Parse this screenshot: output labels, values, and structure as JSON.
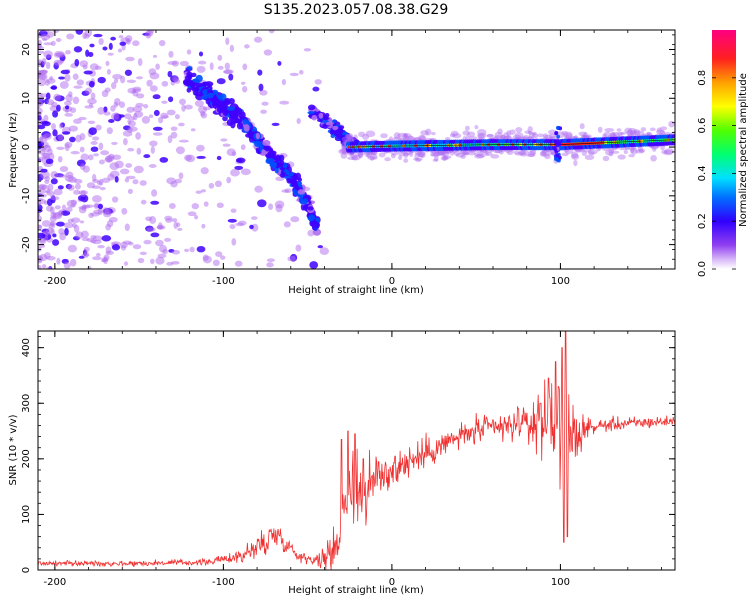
{
  "figure": {
    "title": "S135.2023.057.08.38.G29"
  },
  "chart_data": [
    {
      "type": "heatmap",
      "name": "spectrogram",
      "xlabel": "Height of straight line (km)",
      "ylabel": "Frequency (Hz)",
      "xlim": [
        -210,
        168
      ],
      "ylim": [
        -25,
        24
      ],
      "xticks": [
        -200,
        -100,
        0,
        100
      ],
      "yticks": [
        -20,
        -10,
        0,
        10,
        20
      ],
      "grid": false,
      "colorbar": {
        "label": "Normalized spectral amplitude",
        "range": [
          0,
          1
        ],
        "ticks": [
          0.0,
          0.2,
          0.4,
          0.6,
          0.8
        ],
        "colormap": [
          "#ffffff",
          "#b06cf0",
          "#4000ff",
          "#0050ff",
          "#00c8ff",
          "#00ff80",
          "#40ff00",
          "#ffff00",
          "#ff9000",
          "#ff2020",
          "#ff0090"
        ]
      },
      "features": {
        "scatter_region_x": [
          -210,
          -60
        ],
        "diagonal_trace": [
          [
            -120,
            14
          ],
          [
            -100,
            8
          ],
          [
            -90,
            6
          ],
          [
            -80,
            2
          ],
          [
            -70,
            -3
          ],
          [
            -60,
            -6
          ],
          [
            -50,
            -12
          ],
          [
            -45,
            -16
          ]
        ],
        "second_trace": [
          [
            -45,
            7
          ],
          [
            -35,
            4
          ],
          [
            -25,
            1
          ],
          [
            -20,
            0
          ]
        ],
        "tone_line": [
          [
            -25,
            0
          ],
          [
            0,
            0.2
          ],
          [
            60,
            0.5
          ],
          [
            100,
            0.5
          ],
          [
            168,
            1.5
          ]
        ]
      }
    },
    {
      "type": "line",
      "name": "snr",
      "xlabel": "Height of straight line (km)",
      "ylabel": "SNR (10 * v/v)",
      "xlim": [
        -210,
        168
      ],
      "ylim": [
        0,
        430
      ],
      "xticks": [
        -200,
        -100,
        0,
        100
      ],
      "yticks": [
        0,
        100,
        200,
        300,
        400
      ],
      "grid": false,
      "series": [
        {
          "color": "#f03030",
          "envelope": [
            [
              -210,
              12
            ],
            [
              -150,
              12
            ],
            [
              -110,
              14
            ],
            [
              -90,
              25
            ],
            [
              -80,
              40
            ],
            [
              -72,
              60
            ],
            [
              -68,
              65
            ],
            [
              -62,
              45
            ],
            [
              -55,
              25
            ],
            [
              -45,
              18
            ],
            [
              -38,
              20
            ],
            [
              -32,
              60
            ],
            [
              -28,
              120
            ],
            [
              -24,
              150
            ],
            [
              -20,
              150
            ],
            [
              -15,
              140
            ],
            [
              -10,
              160
            ],
            [
              0,
              180
            ],
            [
              10,
              195
            ],
            [
              20,
              210
            ],
            [
              30,
              225
            ],
            [
              40,
              240
            ],
            [
              50,
              250
            ],
            [
              60,
              255
            ],
            [
              70,
              258
            ],
            [
              80,
              262
            ],
            [
              90,
              265
            ],
            [
              97,
              270
            ],
            [
              100,
              260
            ],
            [
              104,
              250
            ],
            [
              108,
              240
            ],
            [
              115,
              255
            ],
            [
              130,
              262
            ],
            [
              150,
              265
            ],
            [
              168,
              268
            ]
          ],
          "noise": [
            [
              -210,
              4
            ],
            [
              -100,
              5
            ],
            [
              -75,
              25
            ],
            [
              -60,
              12
            ],
            [
              -45,
              6
            ],
            [
              -32,
              50
            ],
            [
              -20,
              70
            ],
            [
              -10,
              40
            ],
            [
              10,
              25
            ],
            [
              40,
              20
            ],
            [
              80,
              25
            ],
            [
              92,
              60
            ],
            [
              100,
              110
            ],
            [
              106,
              60
            ],
            [
              115,
              12
            ],
            [
              168,
              8
            ]
          ],
          "spikes": [
            [
              -30,
              235
            ],
            [
              -26,
              250
            ],
            [
              -22,
              245
            ],
            [
              -17,
              200
            ],
            [
              -8,
              195
            ],
            [
              2,
              205
            ],
            [
              60,
              270
            ],
            [
              75,
              290
            ],
            [
              88,
              300
            ],
            [
              93,
              345
            ],
            [
              97,
              375
            ],
            [
              99,
              330
            ],
            [
              101,
              400
            ],
            [
              103,
              430
            ],
            [
              102,
              50
            ],
            [
              104,
              60
            ]
          ]
        }
      ]
    }
  ]
}
